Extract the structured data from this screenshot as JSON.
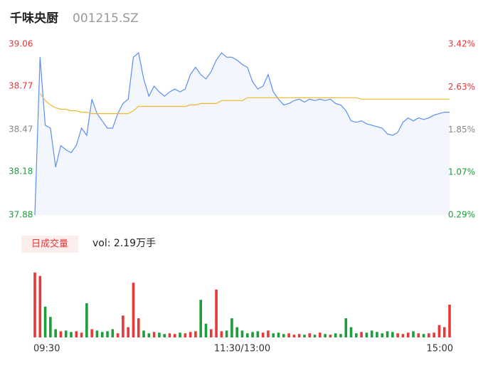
{
  "header": {
    "title": "千味央厨",
    "code": "001215.SZ"
  },
  "chart_data": [
    {
      "type": "line",
      "x": [
        0,
        3,
        6,
        9,
        12,
        15,
        18,
        21,
        24,
        27,
        30,
        33,
        36,
        39,
        42,
        45,
        48,
        51,
        54,
        57,
        60,
        63,
        66,
        69,
        72,
        75,
        78,
        81,
        84,
        87,
        90,
        93,
        96,
        99,
        102,
        105,
        108,
        111,
        114,
        117,
        120,
        123,
        126,
        129,
        132,
        135,
        138,
        141,
        144,
        147,
        150,
        153,
        156,
        159,
        162,
        165,
        168,
        171,
        174,
        177,
        180,
        183,
        186,
        189,
        192,
        195,
        198,
        201,
        204,
        207,
        210,
        213,
        216,
        219,
        222,
        225,
        228,
        231,
        234,
        237,
        240
      ],
      "xlim": [
        0,
        240
      ],
      "series": [
        {
          "color": "#5b8ff0",
          "values": [
            37.88,
            38.97,
            38.5,
            38.48,
            38.21,
            38.36,
            38.33,
            38.31,
            38.36,
            38.48,
            38.43,
            38.68,
            38.58,
            38.53,
            38.48,
            38.48,
            38.58,
            38.65,
            38.68,
            38.97,
            39.0,
            38.82,
            38.7,
            38.77,
            38.73,
            38.7,
            38.73,
            38.75,
            38.73,
            38.75,
            38.85,
            38.9,
            38.85,
            38.82,
            38.87,
            38.95,
            39.0,
            38.97,
            38.97,
            38.95,
            38.92,
            38.9,
            38.8,
            38.75,
            38.77,
            38.85,
            38.73,
            38.68,
            38.64,
            38.65,
            38.67,
            38.68,
            38.66,
            38.68,
            38.67,
            38.68,
            38.67,
            38.68,
            38.65,
            38.64,
            38.6,
            38.53,
            38.52,
            38.53,
            38.51,
            38.5,
            38.49,
            38.48,
            38.44,
            38.43,
            38.45,
            38.52,
            38.55,
            38.53,
            38.55,
            38.54,
            38.55,
            38.57,
            38.58,
            38.59,
            38.59
          ]
        },
        {
          "color": "#f0b82d",
          "values": [
            null,
            38.72,
            38.67,
            38.64,
            38.62,
            38.61,
            38.61,
            38.6,
            38.6,
            38.59,
            38.59,
            38.58,
            38.58,
            38.58,
            38.58,
            38.58,
            38.58,
            38.58,
            38.58,
            38.6,
            38.63,
            38.63,
            38.63,
            38.63,
            38.63,
            38.63,
            38.63,
            38.63,
            38.63,
            38.63,
            38.64,
            38.64,
            38.65,
            38.65,
            38.65,
            38.65,
            38.67,
            38.67,
            38.67,
            38.67,
            38.67,
            38.69,
            38.69,
            38.69,
            38.69,
            38.69,
            38.69,
            38.69,
            38.69,
            38.69,
            38.69,
            38.69,
            38.69,
            38.69,
            38.69,
            38.69,
            38.69,
            38.69,
            38.69,
            38.69,
            38.69,
            38.69,
            38.69,
            38.68,
            38.68,
            38.68,
            38.68,
            38.68,
            38.68,
            38.68,
            38.68,
            38.68,
            38.68,
            38.68,
            38.68,
            38.68,
            38.68,
            38.68,
            38.68,
            38.68,
            38.68
          ]
        }
      ],
      "ylim": [
        37.88,
        39.06
      ],
      "yticks": [
        39.06,
        38.77,
        38.47,
        38.18,
        37.88
      ],
      "y2lim": [
        0.29,
        3.42
      ],
      "y2ticks": [
        {
          "value": 3.42,
          "label": "3.42%"
        },
        {
          "value": 2.63,
          "label": "2.63%"
        },
        {
          "value": 1.85,
          "label": "1.85%"
        },
        {
          "value": 1.07,
          "label": "1.07%"
        },
        {
          "value": 0.29,
          "label": "0.29%"
        }
      ],
      "ytick_colors": [
        "#e83838",
        "#e83838",
        "#888888",
        "#1b9e3b",
        "#1b9e3b"
      ],
      "area_fill": "#f3f6fc"
    },
    {
      "type": "bar",
      "title": "日成交量",
      "subtitle": "vol: 2.19万手",
      "x": [
        0,
        3,
        6,
        9,
        12,
        15,
        18,
        21,
        24,
        27,
        30,
        33,
        36,
        39,
        42,
        45,
        48,
        51,
        54,
        57,
        60,
        63,
        66,
        69,
        72,
        75,
        78,
        81,
        84,
        87,
        90,
        93,
        96,
        99,
        102,
        105,
        108,
        111,
        114,
        117,
        120,
        123,
        126,
        129,
        132,
        135,
        138,
        141,
        144,
        147,
        150,
        153,
        156,
        159,
        162,
        165,
        168,
        171,
        174,
        177,
        180,
        183,
        186,
        189,
        192,
        195,
        198,
        201,
        204,
        207,
        210,
        213,
        216,
        219,
        222,
        225,
        228,
        231,
        234,
        237,
        240
      ],
      "xlim": [
        0,
        240
      ],
      "values": [
        950,
        900,
        450,
        300,
        120,
        90,
        100,
        80,
        90,
        70,
        500,
        120,
        100,
        80,
        90,
        120,
        60,
        320,
        150,
        800,
        280,
        100,
        60,
        80,
        70,
        50,
        60,
        50,
        70,
        60,
        80,
        90,
        550,
        200,
        120,
        700,
        90,
        100,
        280,
        150,
        100,
        60,
        80,
        90,
        70,
        100,
        60,
        70,
        50,
        60,
        40,
        50,
        40,
        60,
        40,
        70,
        50,
        40,
        60,
        50,
        280,
        150,
        60,
        80,
        70,
        100,
        80,
        60,
        90,
        80,
        60,
        50,
        70,
        90,
        60,
        50,
        60,
        70,
        180,
        150,
        480
      ],
      "colors": [
        "#e83838",
        "#e83838",
        "#1b9e3b",
        "#1b9e3b",
        "#1b9e3b",
        "#e83838",
        "#1b9e3b",
        "#1b9e3b",
        "#e83838",
        "#e83838",
        "#1b9e3b",
        "#e83838",
        "#1b9e3b",
        "#1b9e3b",
        "#1b9e3b",
        "#1b9e3b",
        "#e83838",
        "#e83838",
        "#e83838",
        "#e83838",
        "#e83838",
        "#1b9e3b",
        "#1b9e3b",
        "#e83838",
        "#1b9e3b",
        "#1b9e3b",
        "#e83838",
        "#e83838",
        "#1b9e3b",
        "#e83838",
        "#e83838",
        "#e83838",
        "#1b9e3b",
        "#1b9e3b",
        "#e83838",
        "#e83838",
        "#e83838",
        "#1b9e3b",
        "#1b9e3b",
        "#1b9e3b",
        "#1b9e3b",
        "#1b9e3b",
        "#1b9e3b",
        "#1b9e3b",
        "#e83838",
        "#e83838",
        "#1b9e3b",
        "#1b9e3b",
        "#1b9e3b",
        "#e83838",
        "#e83838",
        "#e83838",
        "#1b9e3b",
        "#e83838",
        "#1b9e3b",
        "#e83838",
        "#1b9e3b",
        "#e83838",
        "#1b9e3b",
        "#1b9e3b",
        "#1b9e3b",
        "#1b9e3b",
        "#1b9e3b",
        "#e83838",
        "#1b9e3b",
        "#1b9e3b",
        "#1b9e3b",
        "#1b9e3b",
        "#1b9e3b",
        "#1b9e3b",
        "#e83838",
        "#e83838",
        "#e83838",
        "#1b9e3b",
        "#e83838",
        "#1b9e3b",
        "#e83838",
        "#e83838",
        "#e83838",
        "#e83838",
        "#e83838"
      ],
      "ylim": [
        0,
        1000
      ],
      "xticks": [
        {
          "value": 0,
          "label": "09:30"
        },
        {
          "value": 120,
          "label": "11:30/13:00"
        },
        {
          "value": 240,
          "label": "15:00"
        }
      ]
    }
  ]
}
